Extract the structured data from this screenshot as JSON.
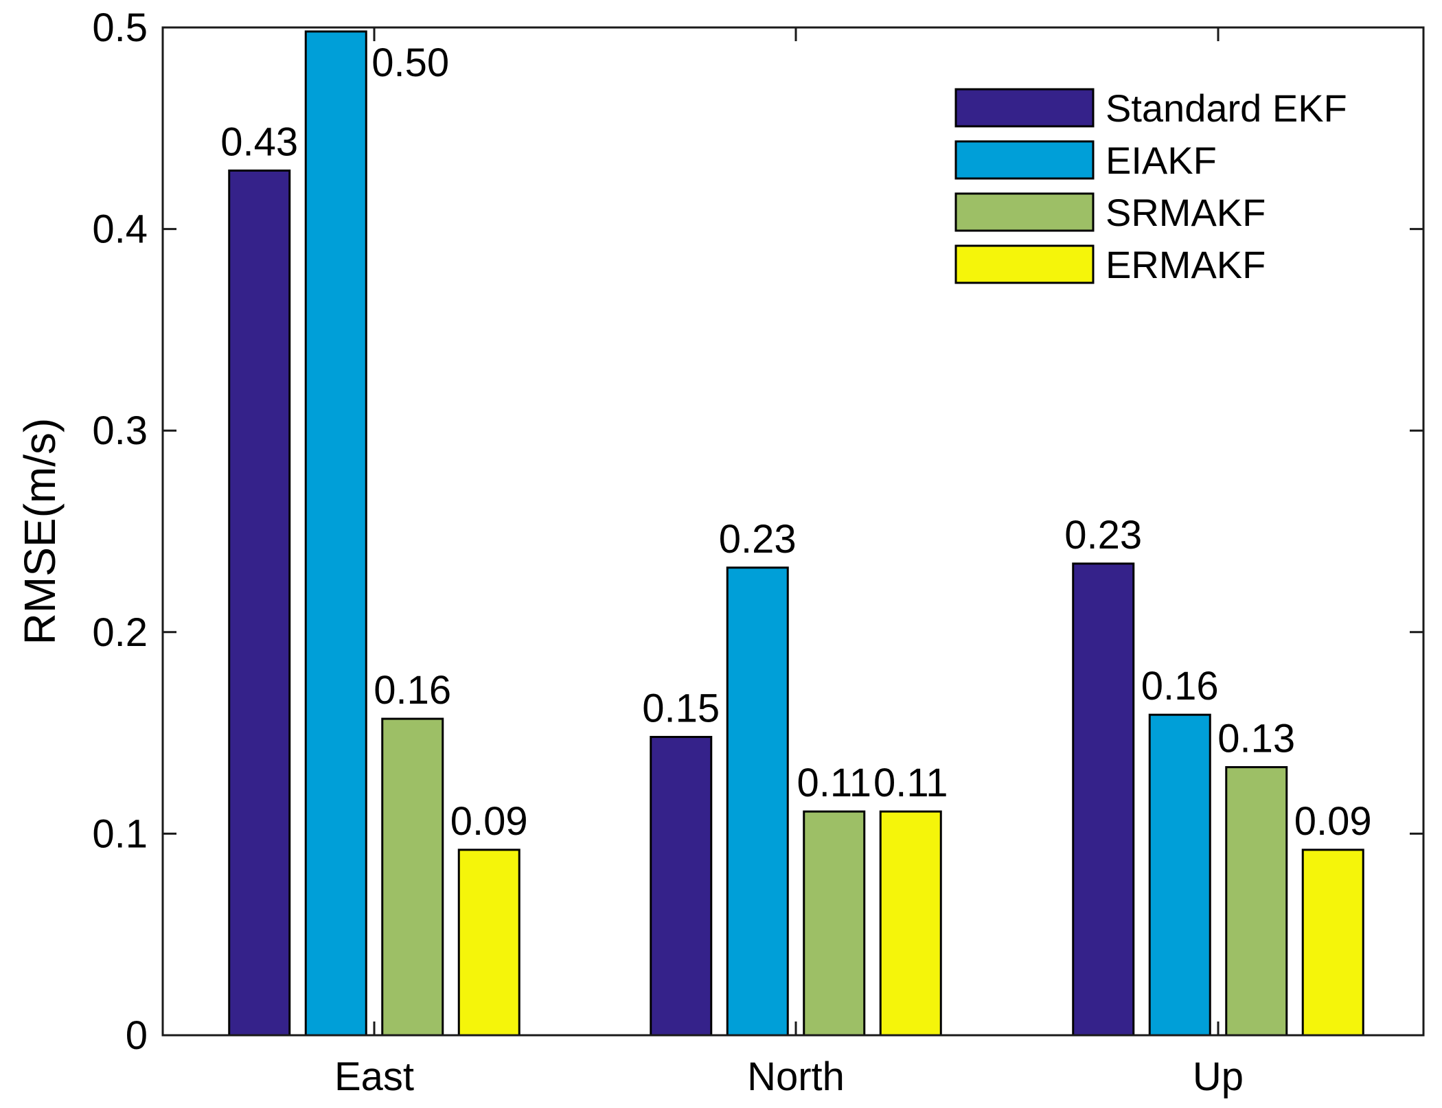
{
  "chart_data": {
    "type": "bar",
    "title": "",
    "xlabel": "",
    "ylabel": "RMSE(m/s)",
    "categories": [
      "East",
      "North",
      "Up"
    ],
    "ylim": [
      0,
      0.5
    ],
    "yticks": [
      0,
      0.1,
      0.2,
      0.3,
      0.4,
      0.5
    ],
    "ytick_labels": [
      "0",
      "0.1",
      "0.2",
      "0.3",
      "0.4",
      "0.5"
    ],
    "grid": false,
    "legend_position": "top-right",
    "series": [
      {
        "name": "Standard EKF",
        "color": "#35228a",
        "values": [
          0.429,
          0.148,
          0.234
        ],
        "labels": [
          "0.43",
          "0.15",
          "0.23"
        ]
      },
      {
        "name": "EIAKF",
        "color": "#009fd8",
        "values": [
          0.498,
          0.232,
          0.159
        ],
        "labels": [
          "0.50",
          "0.23",
          "0.16"
        ]
      },
      {
        "name": "SRMAKF",
        "color": "#9dbf66",
        "values": [
          0.157,
          0.111,
          0.133
        ],
        "labels": [
          "0.16",
          "0.11",
          "0.13"
        ]
      },
      {
        "name": "ERMAKF",
        "color": "#f5f50a",
        "values": [
          0.092,
          0.111,
          0.092
        ],
        "labels": [
          "0.09",
          "0.11",
          "0.09"
        ]
      }
    ]
  }
}
